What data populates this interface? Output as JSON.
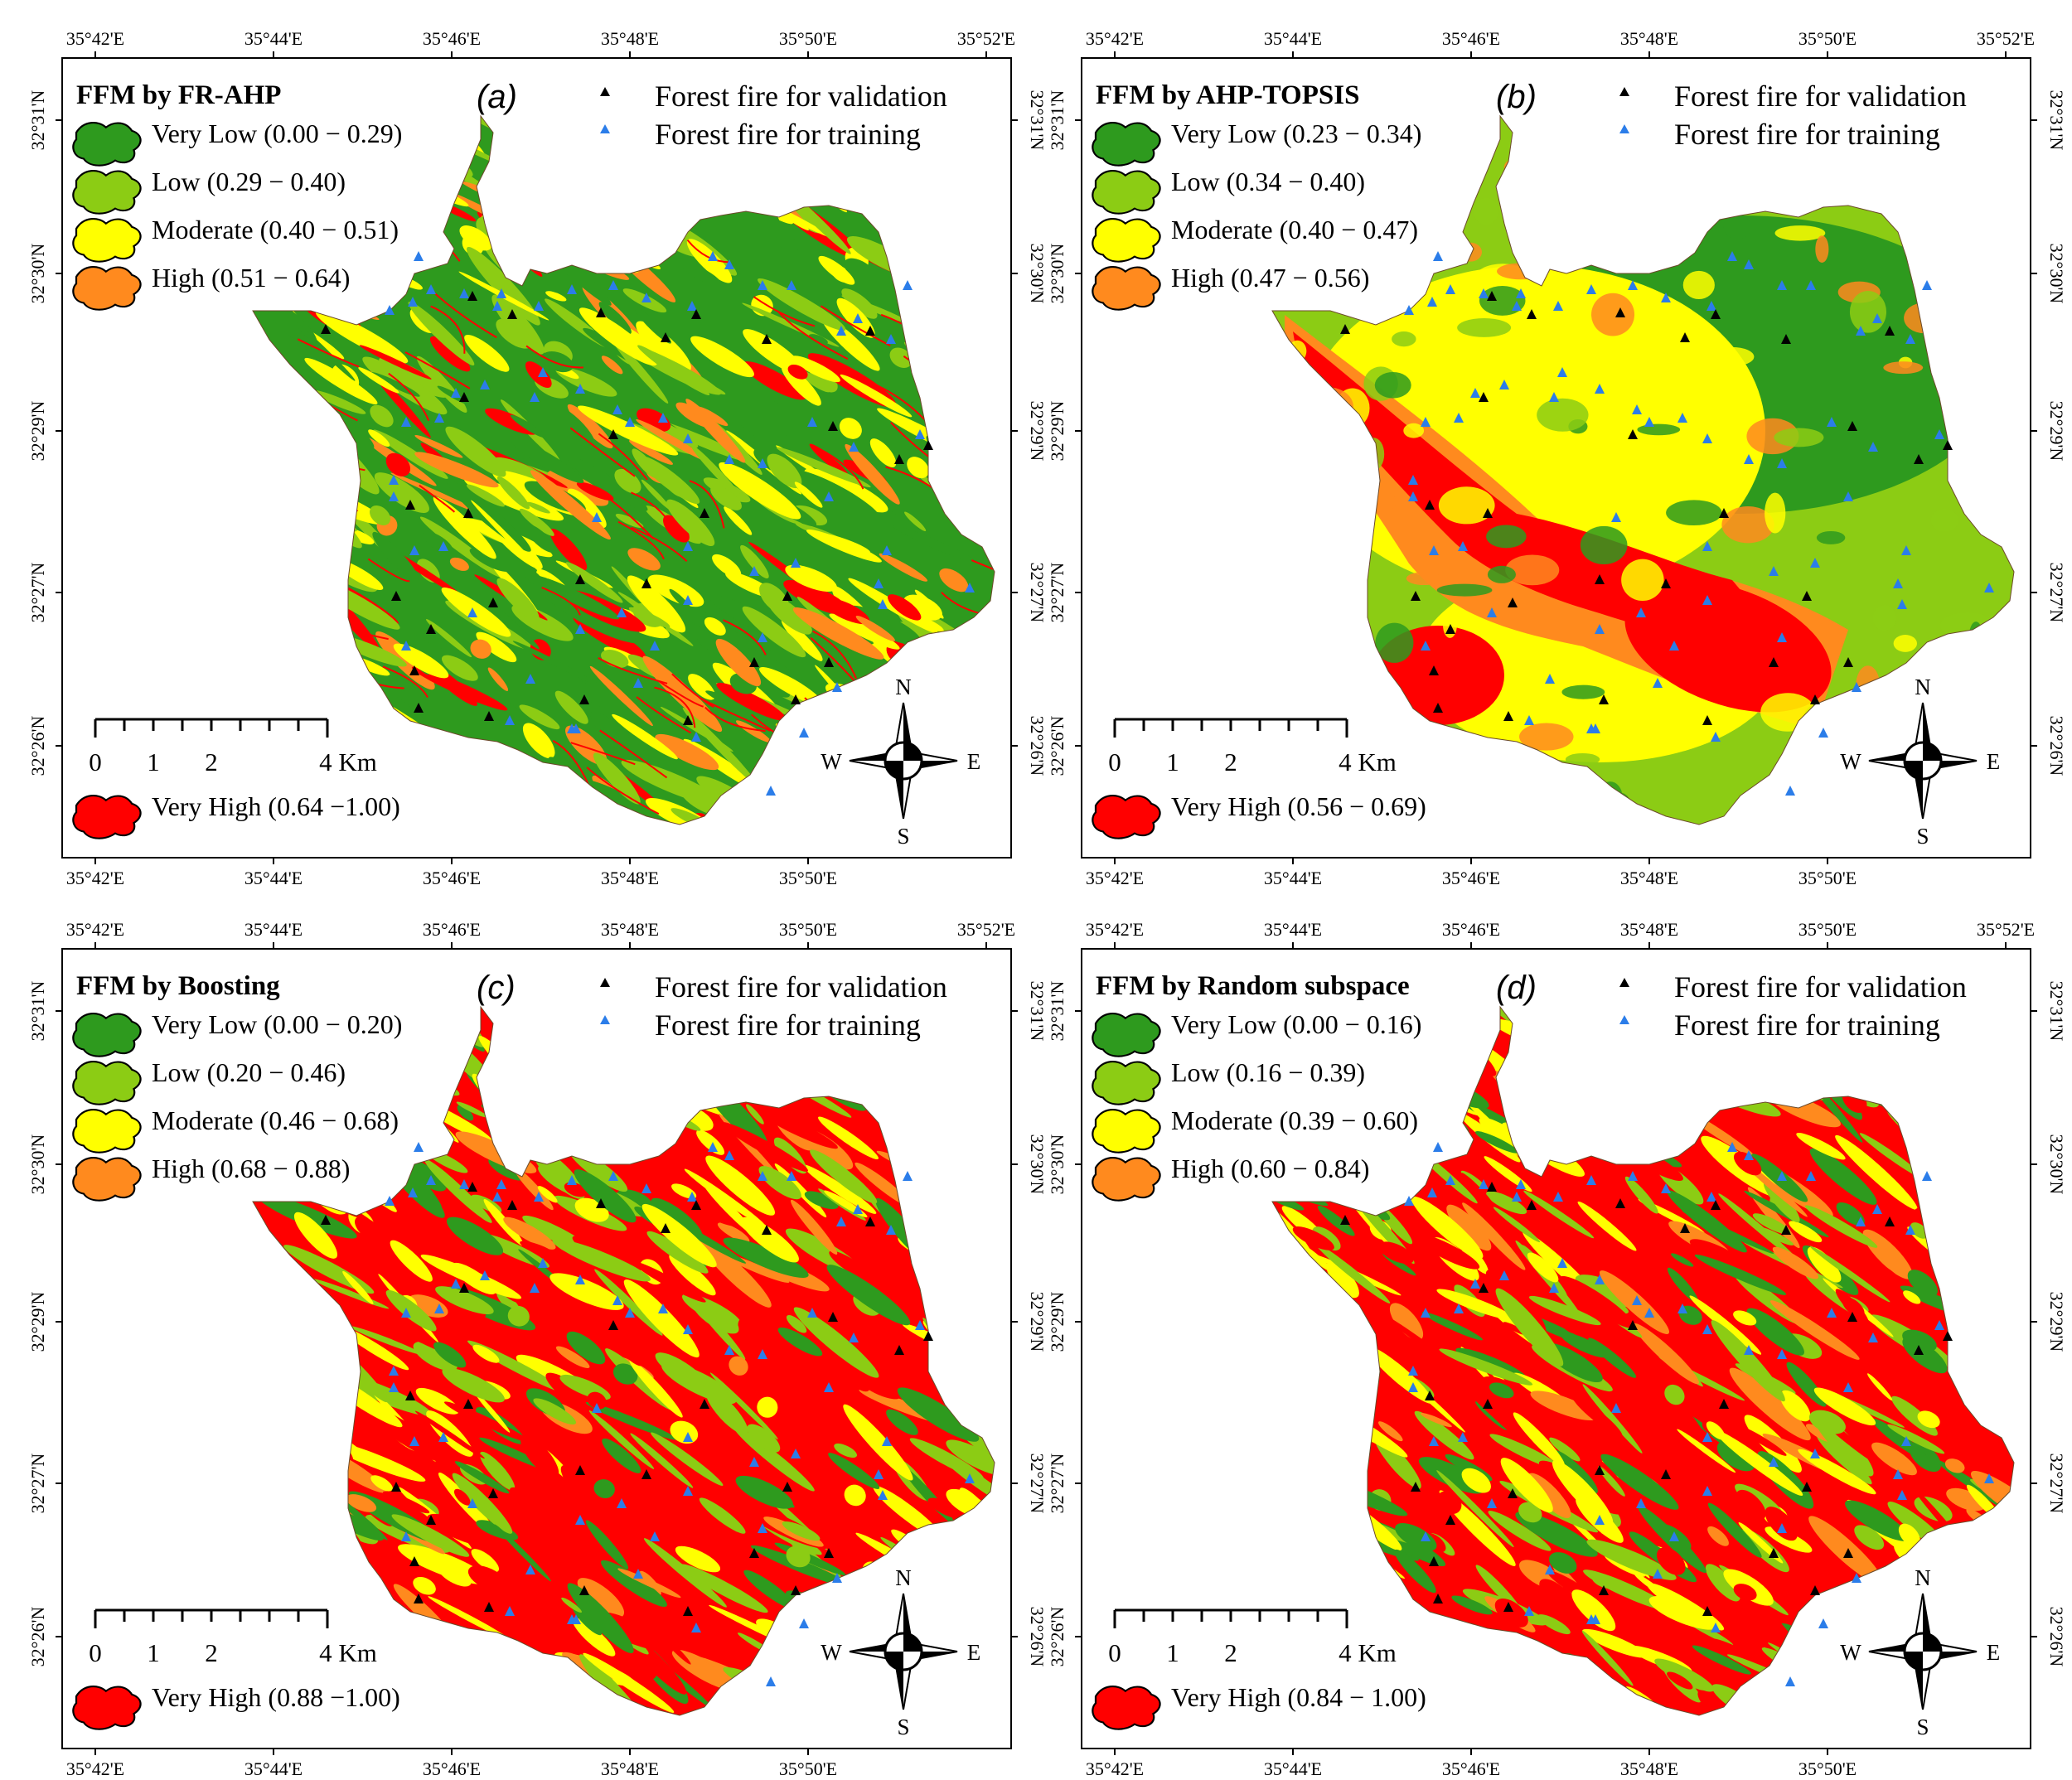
{
  "colors": {
    "very_low": "#2e9a1e",
    "low": "#8ccc14",
    "moderate": "#ffff00",
    "high": "#ff8a1e",
    "very_high": "#ff0000",
    "validation_marker": "#000000",
    "training_marker": "#2b7de9"
  },
  "longitude_ticks": [
    "35°42'E",
    "35°44'E",
    "35°46'E",
    "35°48'E",
    "35°50'E",
    "35°52'E"
  ],
  "latitude_ticks": [
    "32°31'N",
    "32°30'N",
    "32°29'N",
    "32°27'N",
    "32°26'N"
  ],
  "fire_legend": {
    "validation": "Forest fire for validation",
    "training": "Forest fire for training"
  },
  "scale_bar": {
    "labels": [
      "0",
      "1",
      "2",
      "4 Km"
    ]
  },
  "compass": {
    "n": "N",
    "s": "S",
    "e": "E",
    "w": "W"
  },
  "panels": [
    {
      "title": "FFM by FR-AHP",
      "letter": "(a)",
      "dominant": "mixed",
      "classes": [
        {
          "key": "very_low",
          "label": "Very Low (0.00 − 0.29)"
        },
        {
          "key": "low",
          "label": "Low (0.29 − 0.40)"
        },
        {
          "key": "moderate",
          "label": "Moderate (0.40 − 0.51)"
        },
        {
          "key": "high",
          "label": "High (0.51 − 0.64)"
        },
        {
          "key": "very_high",
          "label": "Very High (0.64 −1.00)"
        }
      ]
    },
    {
      "title": "FFM by AHP-TOPSIS",
      "letter": "(b)",
      "dominant": "zonal",
      "classes": [
        {
          "key": "very_low",
          "label": "Very Low (0.23 − 0.34)"
        },
        {
          "key": "low",
          "label": "Low (0.34 − 0.40)"
        },
        {
          "key": "moderate",
          "label": "Moderate (0.40 − 0.47)"
        },
        {
          "key": "high",
          "label": "High (0.47 − 0.56)"
        },
        {
          "key": "very_high",
          "label": "Very High (0.56 − 0.69)"
        }
      ]
    },
    {
      "title": "FFM by Boosting",
      "letter": "(c)",
      "dominant": "red",
      "classes": [
        {
          "key": "very_low",
          "label": "Very Low (0.00 − 0.20)"
        },
        {
          "key": "low",
          "label": "Low (0.20 − 0.46)"
        },
        {
          "key": "moderate",
          "label": "Moderate (0.46 − 0.68)"
        },
        {
          "key": "high",
          "label": "High (0.68 − 0.88)"
        },
        {
          "key": "very_high",
          "label": "Very High (0.88 −1.00)"
        }
      ]
    },
    {
      "title": "FFM by Random subspace",
      "letter": "(d)",
      "dominant": "red",
      "classes": [
        {
          "key": "very_low",
          "label": "Very Low (0.00 − 0.16)"
        },
        {
          "key": "low",
          "label": "Low (0.16 − 0.39)"
        },
        {
          "key": "moderate",
          "label": "Moderate (0.39 − 0.60)"
        },
        {
          "key": "high",
          "label": "High (0.60 − 0.84)"
        },
        {
          "key": "very_high",
          "label": "Very High (0.84 − 1.00)"
        }
      ]
    }
  ]
}
